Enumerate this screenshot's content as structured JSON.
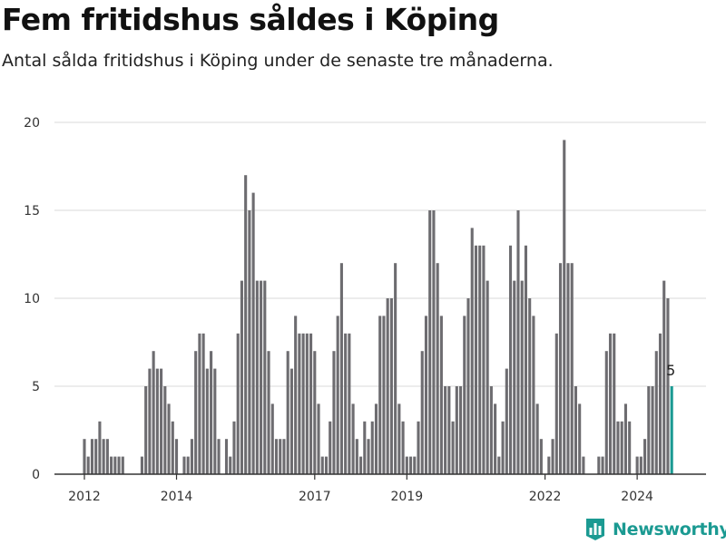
{
  "title": "Fem fritidshus såldes i Köping",
  "subtitle": "Antal sålda fritidshus i Köping under de senaste tre månaderna.",
  "brand": {
    "name": "Newsworthy",
    "color": "#1b9a92",
    "icon": "bar-chart-logo-icon"
  },
  "colors": {
    "bar": "#6d6c70",
    "highlight": "#1b9a92",
    "grid": "#d9d9d9",
    "axis": "#333333"
  },
  "chart_data": {
    "type": "bar",
    "x_unit": "month",
    "x_start": "2012-01",
    "ylim": [
      0,
      20
    ],
    "y_ticks": [
      0,
      5,
      10,
      15,
      20
    ],
    "x_tick_labels": [
      "2012",
      "2014",
      "2017",
      "2019",
      "2022",
      "2024"
    ],
    "grid": true,
    "values": [
      2,
      1,
      2,
      2,
      3,
      2,
      2,
      1,
      1,
      1,
      1,
      0,
      0,
      0,
      0,
      1,
      5,
      6,
      7,
      6,
      6,
      5,
      4,
      3,
      2,
      0,
      1,
      1,
      2,
      7,
      8,
      8,
      6,
      7,
      6,
      2,
      0,
      2,
      1,
      3,
      8,
      11,
      17,
      15,
      16,
      11,
      11,
      11,
      7,
      4,
      2,
      2,
      2,
      7,
      6,
      9,
      8,
      8,
      8,
      8,
      7,
      4,
      1,
      1,
      3,
      7,
      9,
      12,
      8,
      8,
      4,
      2,
      1,
      3,
      2,
      3,
      4,
      9,
      9,
      10,
      10,
      12,
      4,
      3,
      1,
      1,
      1,
      3,
      7,
      9,
      15,
      15,
      12,
      9,
      5,
      5,
      3,
      5,
      5,
      9,
      10,
      14,
      13,
      13,
      13,
      11,
      5,
      4,
      1,
      3,
      6,
      13,
      11,
      15,
      11,
      13,
      10,
      9,
      4,
      2,
      0,
      1,
      2,
      8,
      12,
      19,
      12,
      12,
      5,
      4,
      1,
      0,
      0,
      0,
      1,
      1,
      7,
      8,
      8,
      3,
      3,
      4,
      3,
      0,
      1,
      1,
      2,
      5,
      5,
      7,
      8,
      11,
      10,
      5
    ],
    "highlight_last": true,
    "highlight_label": "5"
  }
}
